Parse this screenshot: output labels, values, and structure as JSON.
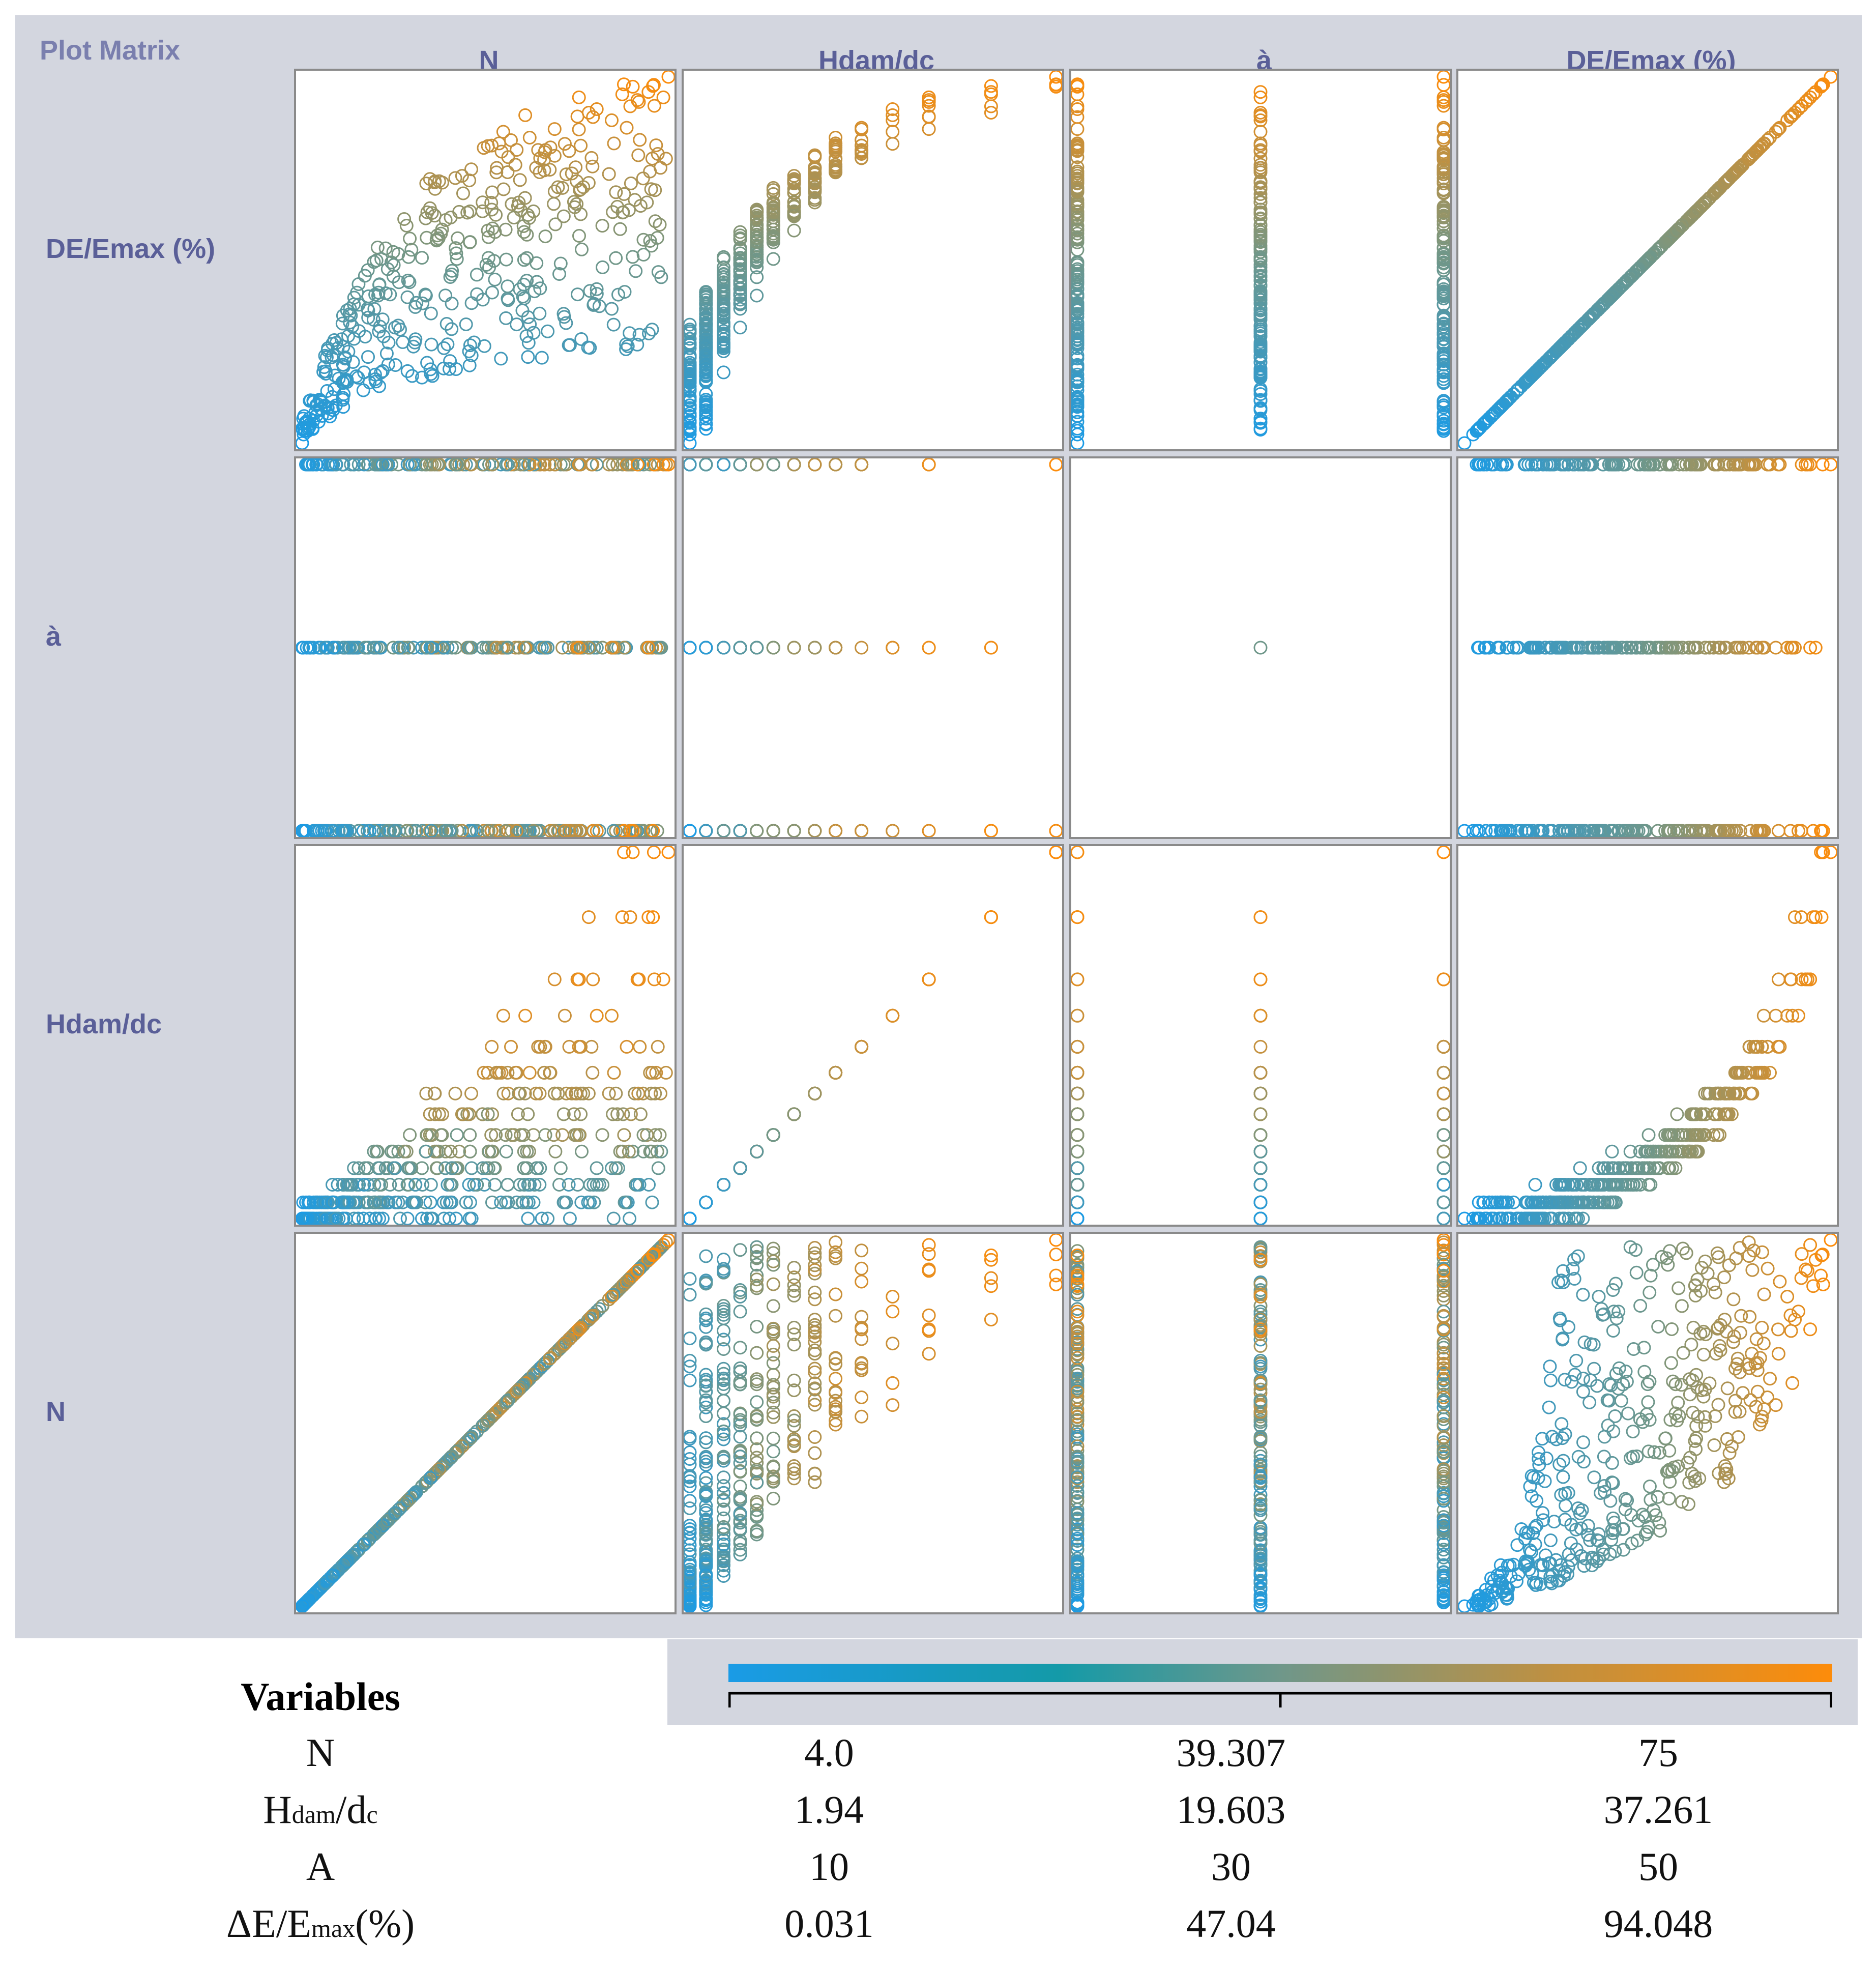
{
  "panel_title": "Plot Matrix",
  "variables_heading": "Variables",
  "colors": {
    "low": "#1a9be6",
    "mid": "#6f978a",
    "high": "#fd8c0a",
    "panel_bg": "#d3d6df",
    "label": "#5a5f98"
  },
  "variables": [
    {
      "key": "N",
      "matrix_label": "N",
      "legend_name": "N",
      "min": "4.0",
      "mid": "39.307",
      "max": "75"
    },
    {
      "key": "H",
      "matrix_label": "Hdam/dc",
      "legend_name_main": "H",
      "legend_name_sub1": "dam",
      "legend_name_slash": "/d",
      "legend_name_sub2": "c",
      "min": "1.94",
      "mid": "19.603",
      "max": "37.261"
    },
    {
      "key": "A",
      "matrix_label": "à",
      "legend_name": "A",
      "min": "10",
      "mid": "30",
      "max": "50"
    },
    {
      "key": "E",
      "matrix_label": "DE/Emax (%)",
      "legend_name_main": "ΔE/E",
      "legend_name_sub": "max",
      "legend_name_suffix": "(%)",
      "min": "0.031",
      "mid": "47.04",
      "max": "94.048"
    }
  ],
  "chart_data": {
    "type": "scatter",
    "title": "Plot Matrix",
    "columns": [
      "N",
      "Hdam/dc",
      "à",
      "DE/Emax (%)"
    ],
    "rows": [
      "DE/Emax (%)",
      "à",
      "Hdam/dc",
      "N"
    ],
    "color_by": "DE/Emax (%)",
    "ranges": {
      "N": [
        4.0,
        75
      ],
      "H": [
        1.94,
        37.261
      ],
      "A": [
        10,
        50
      ],
      "E": [
        0.031,
        94.048
      ]
    },
    "h_levels": [
      1.94,
      3.5,
      5.2,
      6.8,
      8.4,
      10.0,
      12.0,
      14.0,
      16.0,
      18.5,
      21.5,
      25.0,
      31.0,
      37.261
    ],
    "a_levels": [
      10,
      30,
      50
    ],
    "marker": "open-circle",
    "sample_points": [
      {
        "N": 4,
        "H": 1.94,
        "A": 10,
        "E": 0.031
      },
      {
        "N": 10,
        "H": 3.5,
        "A": 30,
        "E": 8.5
      },
      {
        "N": 16,
        "H": 5.2,
        "A": 50,
        "E": 18.2
      },
      {
        "N": 22,
        "H": 6.8,
        "A": 10,
        "E": 29.7
      },
      {
        "N": 28,
        "H": 8.4,
        "A": 30,
        "E": 37.9
      },
      {
        "N": 34,
        "H": 10.0,
        "A": 50,
        "E": 47.3
      },
      {
        "N": 40,
        "H": 12.0,
        "A": 10,
        "E": 54.6
      },
      {
        "N": 46,
        "H": 14.0,
        "A": 30,
        "E": 61.8
      },
      {
        "N": 52,
        "H": 16.0,
        "A": 50,
        "E": 70.2
      },
      {
        "N": 58,
        "H": 18.5,
        "A": 10,
        "E": 76.4
      },
      {
        "N": 64,
        "H": 21.5,
        "A": 30,
        "E": 82.9
      },
      {
        "N": 69,
        "H": 25.0,
        "A": 50,
        "E": 88.1
      },
      {
        "N": 72,
        "H": 31.0,
        "A": 10,
        "E": 91.7
      },
      {
        "N": 75,
        "H": 37.261,
        "A": 50,
        "E": 94.048
      }
    ],
    "legend": {
      "type": "colorbar",
      "tick_positions": [
        "min",
        "mid",
        "max"
      ]
    }
  }
}
